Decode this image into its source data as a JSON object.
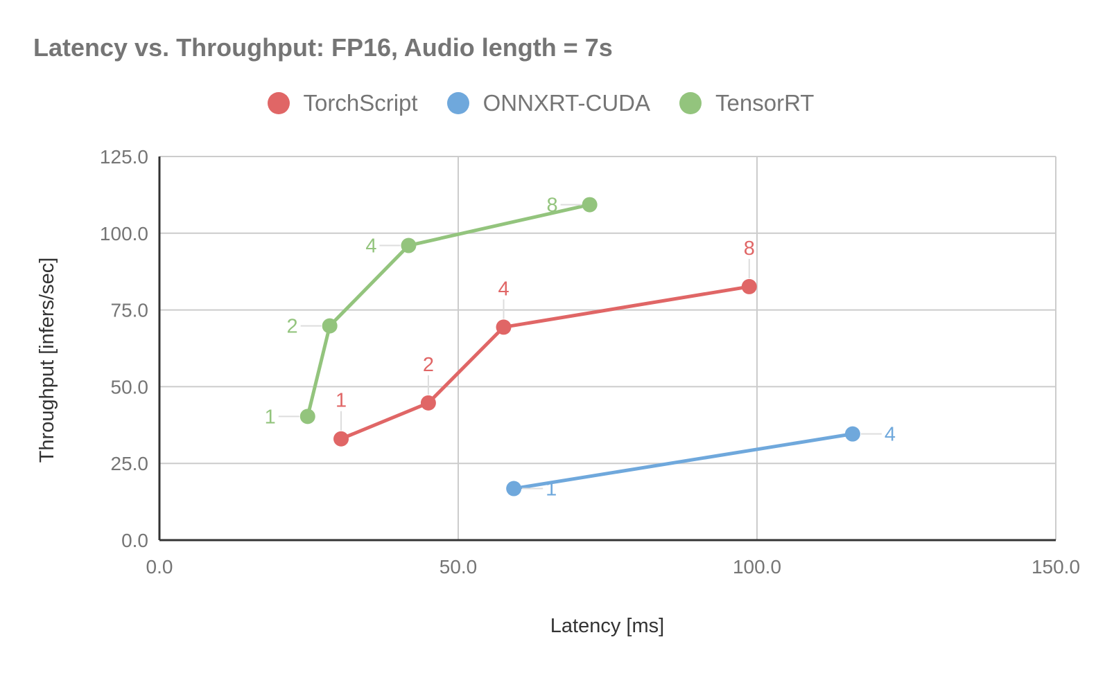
{
  "chart_data": {
    "type": "line",
    "title": "Latency vs. Throughput: FP16, Audio length = 7s",
    "xlabel": "Latency [ms]",
    "ylabel": "Throughput [infers/sec]",
    "xlim": [
      0,
      150
    ],
    "ylim": [
      0,
      125
    ],
    "xticks": [
      0,
      50,
      100,
      150
    ],
    "yticks": [
      0,
      25,
      50,
      75,
      100,
      125
    ],
    "xtick_labels": [
      "0.0",
      "50.0",
      "100.0",
      "150.0"
    ],
    "ytick_labels": [
      "0.0",
      "25.0",
      "50.0",
      "75.0",
      "100.0",
      "125.0"
    ],
    "grid": true,
    "legend_position": "top",
    "series": [
      {
        "name": "TorchScript",
        "color": "#e06666",
        "points": [
          {
            "x": 30.4,
            "y": 33.0,
            "label": "1",
            "label_pos": "above"
          },
          {
            "x": 45.0,
            "y": 44.7,
            "label": "2",
            "label_pos": "above"
          },
          {
            "x": 57.6,
            "y": 69.4,
            "label": "4",
            "label_pos": "above"
          },
          {
            "x": 98.7,
            "y": 82.6,
            "label": "8",
            "label_pos": "above"
          }
        ]
      },
      {
        "name": "ONNXRT-CUDA",
        "color": "#6fa8dc",
        "points": [
          {
            "x": 59.3,
            "y": 16.8,
            "label": "1",
            "label_pos": "right"
          },
          {
            "x": 116.0,
            "y": 34.6,
            "label": "4",
            "label_pos": "right"
          }
        ]
      },
      {
        "name": "TensorRT",
        "color": "#93c47d",
        "points": [
          {
            "x": 24.8,
            "y": 40.3,
            "label": "1",
            "label_pos": "left"
          },
          {
            "x": 28.5,
            "y": 69.8,
            "label": "2",
            "label_pos": "left"
          },
          {
            "x": 41.7,
            "y": 96.0,
            "label": "4",
            "label_pos": "left"
          },
          {
            "x": 72.0,
            "y": 109.3,
            "label": "8",
            "label_pos": "left"
          }
        ]
      }
    ]
  }
}
